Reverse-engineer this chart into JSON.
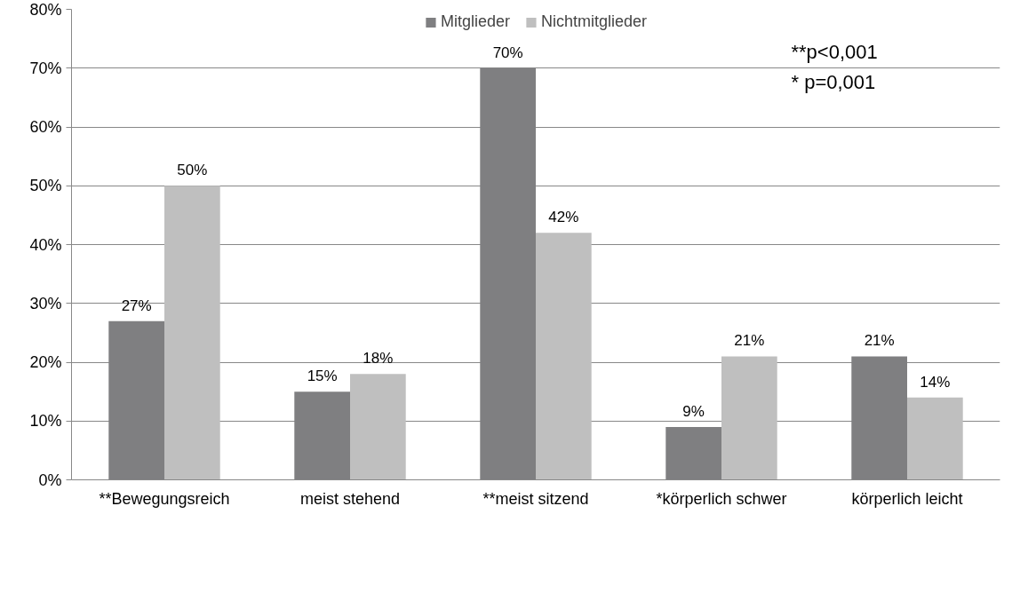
{
  "chart_data": {
    "type": "bar",
    "categories": [
      "**Bewegungsreich",
      "meist stehend",
      "**meist sitzend",
      "*körperlich schwer",
      "körperlich leicht"
    ],
    "series": [
      {
        "name": "Mitglieder",
        "color": "#7f7f81",
        "values": [
          27,
          15,
          70,
          9,
          21
        ],
        "value_labels": [
          "27%",
          "15%",
          "70%",
          "9%",
          "21%"
        ]
      },
      {
        "name": "Nichtmitglieder",
        "color": "#bfbfbf",
        "values": [
          50,
          18,
          42,
          21,
          14
        ],
        "value_labels": [
          "50%",
          "18%",
          "42%",
          "21%",
          "14%"
        ]
      }
    ],
    "ylim": [
      0,
      80
    ],
    "yticks": [
      {
        "value": 0,
        "label": "0%"
      },
      {
        "value": 10,
        "label": "10%"
      },
      {
        "value": 20,
        "label": "20%"
      },
      {
        "value": 30,
        "label": "30%"
      },
      {
        "value": 40,
        "label": "40%"
      },
      {
        "value": 50,
        "label": "50%"
      },
      {
        "value": 60,
        "label": "60%"
      },
      {
        "value": 70,
        "label": "70%"
      },
      {
        "value": 80,
        "label": "80%"
      }
    ],
    "grid": "y",
    "legend": "top",
    "annotations": [
      "**p<0,001",
      "*   p=0,001"
    ]
  }
}
